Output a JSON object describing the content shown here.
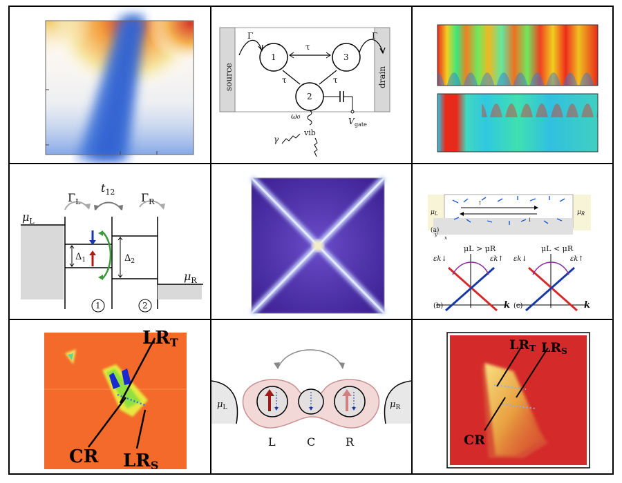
{
  "panels": {
    "p2": {
      "source": "source",
      "drain": "drain",
      "gamma_left": "Γ",
      "gamma_right": "Γ",
      "tau_13": "τ",
      "tau_12": "τ",
      "tau_32": "τ",
      "dot1": "1",
      "dot2": "2",
      "dot3": "3",
      "omega": "ω₀",
      "vib": "vib",
      "gamma": "γ",
      "vgate": "V",
      "vgate_sub": "gate"
    },
    "p4": {
      "mu_l": "μ",
      "mu_l_sub": "L",
      "mu_r": "μ",
      "mu_r_sub": "R",
      "gamma_l": "Γ",
      "gamma_l_sub": "L",
      "gamma_r": "Γ",
      "gamma_r_sub": "R",
      "t12": "t",
      "t12_sub": "12",
      "delta1": "Δ",
      "delta1_sub": "1",
      "delta2": "Δ",
      "delta2_sub": "2",
      "site1": "1",
      "site2": "2"
    },
    "p6": {
      "mu_l": "μ",
      "mu_l_sub": "L",
      "mu_r": "μ",
      "mu_r_sub": "R",
      "label_a": "(a)",
      "label_b": "(b)",
      "label_c": "(c)",
      "cond_b": "μL > μR",
      "cond_c": "μL < μR",
      "eps_down": "εk↓",
      "eps_up": "εk↑",
      "k": "k",
      "axis_y": "y",
      "axis_x": "x"
    },
    "p7": {
      "lr_t": "LR",
      "lr_t_sub": "T",
      "lr_s": "LR",
      "lr_s_sub": "S",
      "cr": "CR"
    },
    "p8": {
      "mu_l": "μ",
      "mu_l_sub": "L",
      "mu_r": "μ",
      "mu_r_sub": "R",
      "site_l": "L",
      "site_c": "C",
      "site_r": "R"
    },
    "p9": {
      "lr_t": "LR",
      "lr_t_sub": "T",
      "lr_s": "LR",
      "lr_s_sub": "S",
      "cr": "CR"
    }
  },
  "colors": {
    "border": "#000000",
    "blue_map": "#3f74d8",
    "purple_map": "#4b2aa0",
    "orange_map": "#f36a2a",
    "red_map": "#d42a2a",
    "arrow_red": "#b01818",
    "arrow_blue": "#1838a8",
    "arrow_green": "#3a9a3a"
  }
}
